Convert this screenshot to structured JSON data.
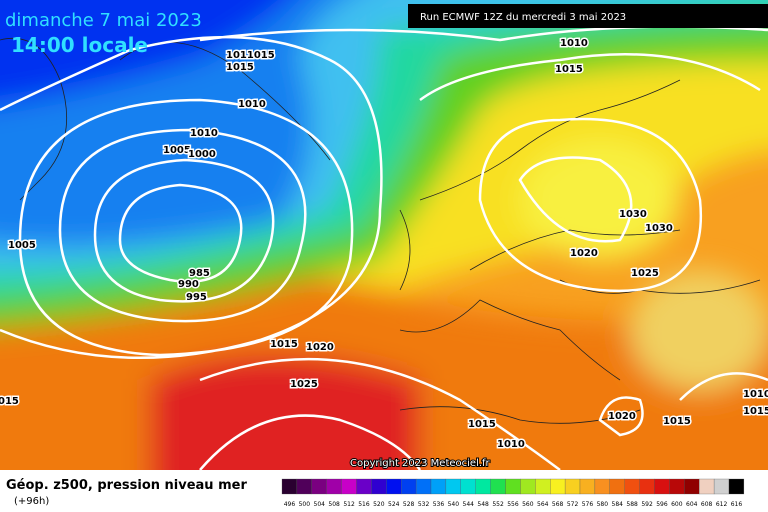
{
  "header": {
    "date": "dimanche 7 mai 2023",
    "time": "14:00 locale",
    "run": "Run ECMWF 12Z du mercredi 3 mai 2023"
  },
  "isobar_labels": [
    "1010",
    "1015",
    "1011015",
    "1015",
    "1010",
    "1010",
    "1005",
    "1000",
    "1005",
    "985",
    "990",
    "995",
    "1015",
    "1020",
    "1025",
    "015",
    "1030",
    "1030",
    "1020",
    "1025",
    "1015",
    "1010",
    "1020",
    "1015",
    "1010",
    "1015"
  ],
  "copyright": "Copyright 2023 Meteociel.fr",
  "legend": {
    "title": "Géop. z500, pression niveau mer",
    "lead": "(+96h)",
    "scale": [
      496,
      500,
      504,
      508,
      512,
      516,
      520,
      524,
      528,
      532,
      536,
      540,
      544,
      548,
      552,
      556,
      560,
      564,
      568,
      572,
      576,
      580,
      584,
      588,
      592,
      596,
      600,
      604,
      608,
      612,
      616
    ]
  }
}
